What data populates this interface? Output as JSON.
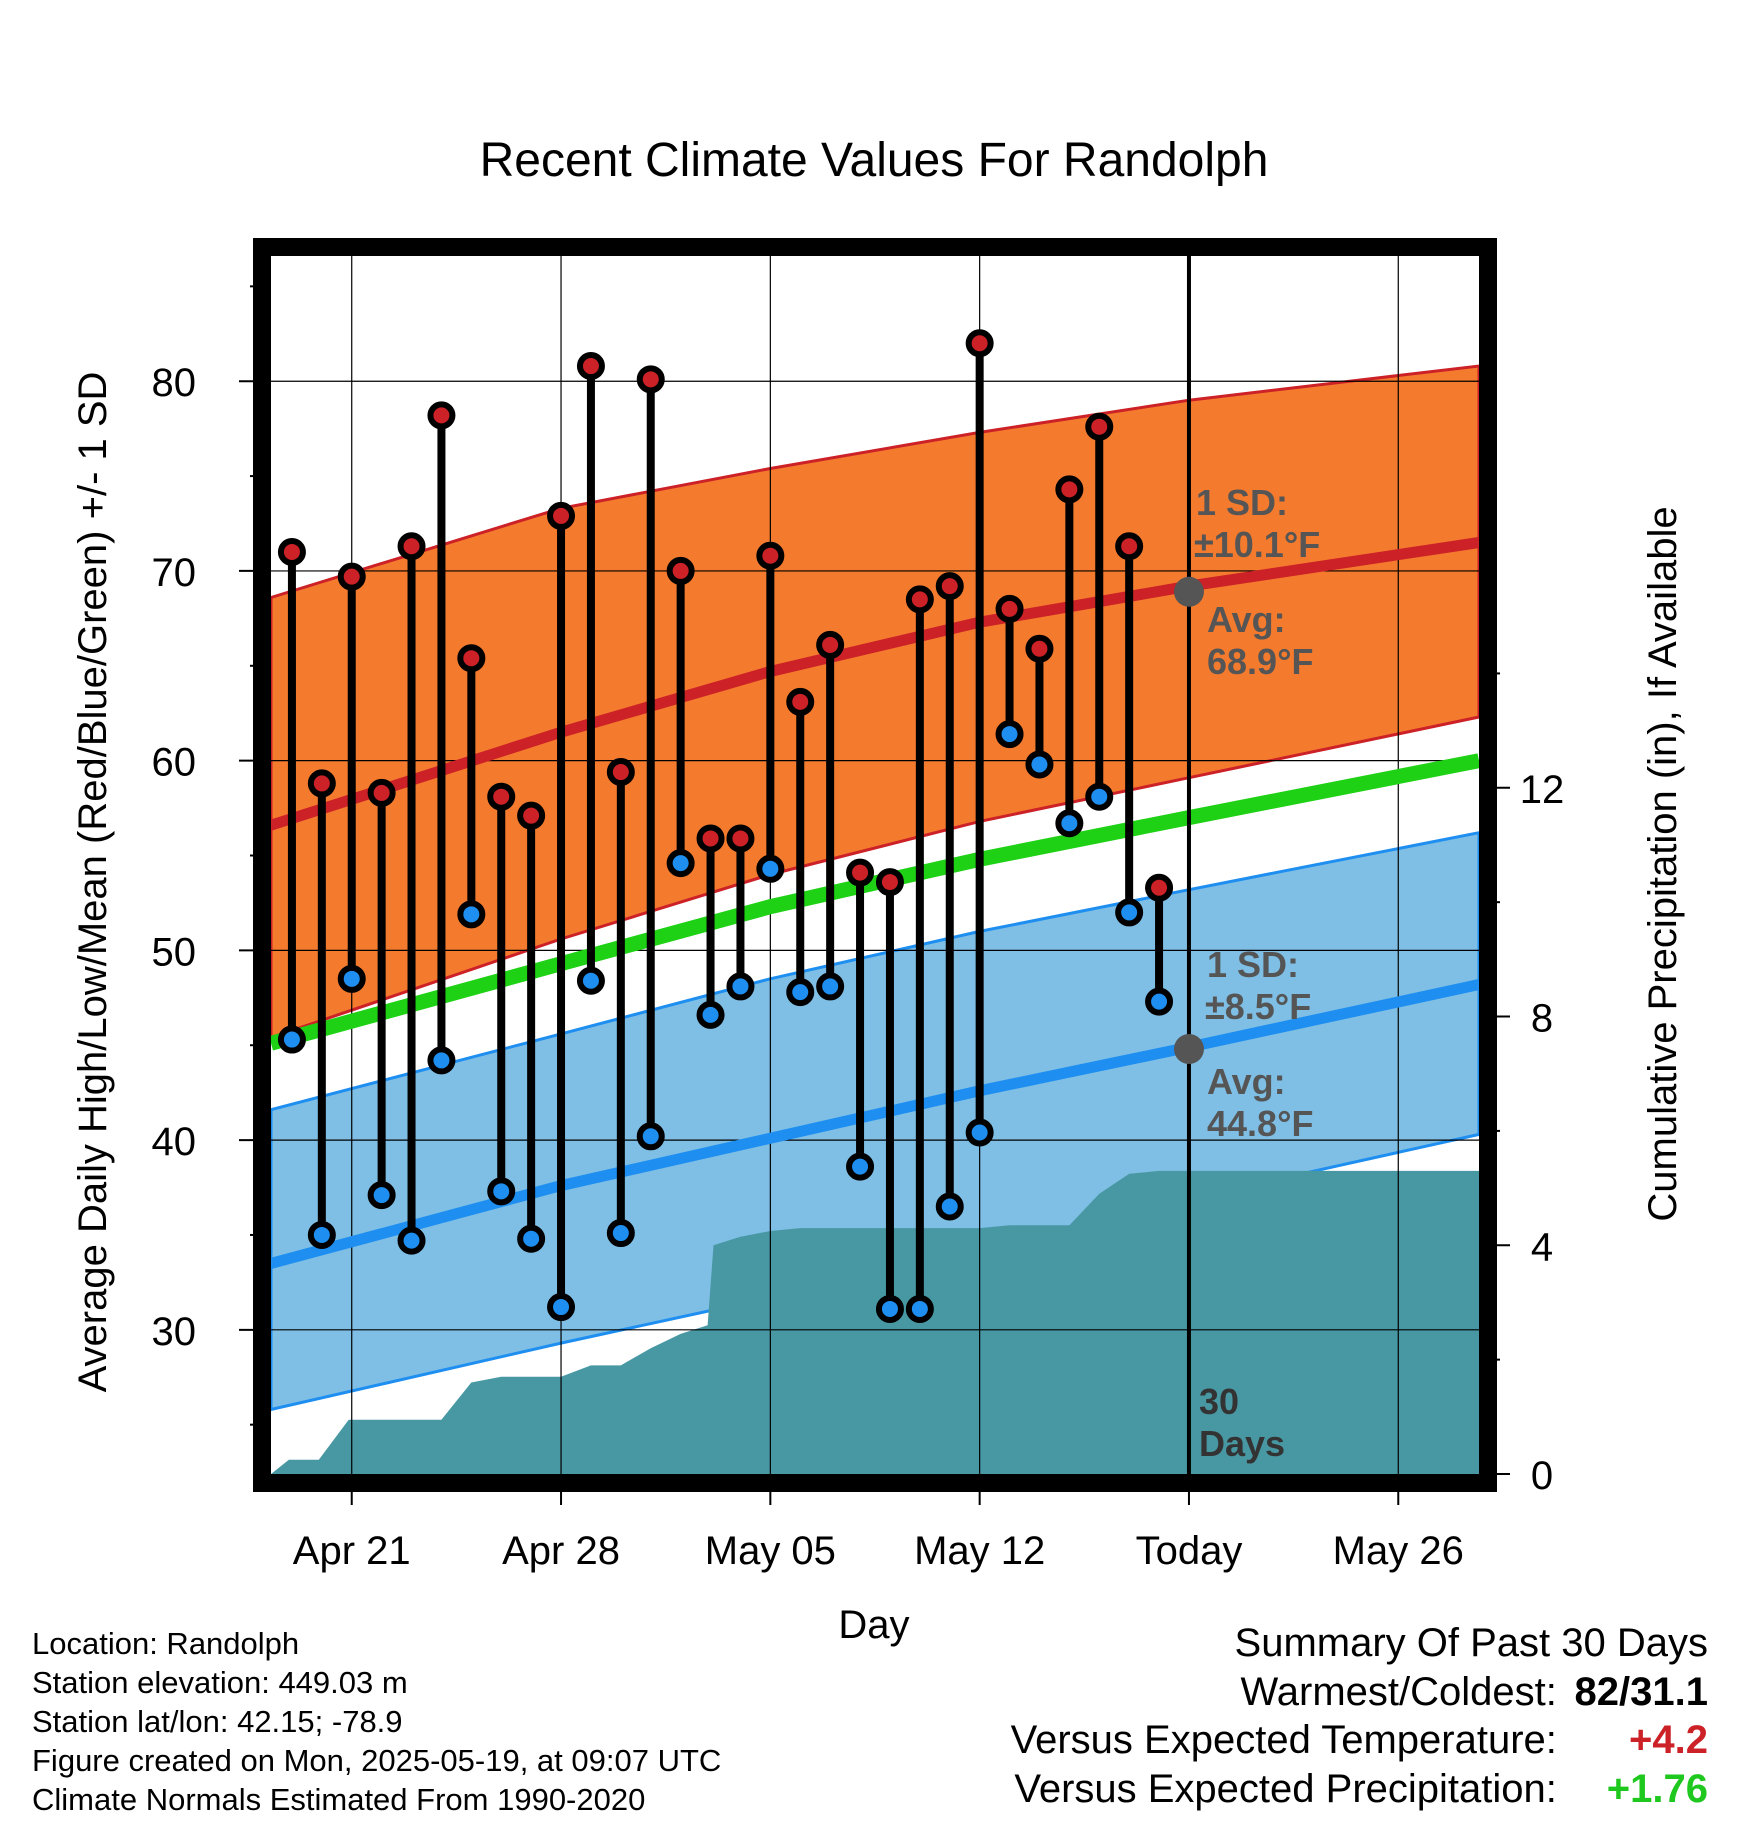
{
  "chart_data": {
    "type": "line",
    "title": "Recent Climate Values For Randolph",
    "xlabel": "Day",
    "ylabel": "Average Daily High/Low/Mean (Red/Blue/Green) +/- 1 SD",
    "y2label": "Cumulative Precipitation (in), If Available",
    "ylim": [
      22.4,
      86.6
    ],
    "y2lim": [
      0,
      21.3
    ],
    "xlim": [
      -2.7,
      37.7
    ],
    "yticks": [
      30,
      40,
      50,
      60,
      70,
      80
    ],
    "y2ticks": [
      0,
      4,
      8,
      12
    ],
    "x_tick_labels": [
      "Apr 21",
      "Apr 28",
      "May 05",
      "May 12",
      "Today",
      "May 26"
    ],
    "x_tick_days": [
      0,
      7,
      14,
      21,
      28,
      35
    ],
    "grid": true,
    "today_marker": {
      "day": 28,
      "label_line1": "30",
      "label_line2": "Days"
    },
    "normals": {
      "days": [
        -2.7,
        7,
        14,
        21,
        28,
        37.7
      ],
      "high_mean": [
        56.6,
        61.5,
        64.7,
        67.3,
        69.2,
        71.5
      ],
      "high_upper": [
        68.6,
        73.3,
        75.4,
        77.3,
        79.0,
        80.8
      ],
      "high_lower": [
        45.4,
        50.6,
        54.0,
        56.8,
        59.1,
        62.3
      ],
      "low_mean": [
        33.5,
        37.6,
        40.1,
        42.6,
        44.9,
        48.2
      ],
      "low_upper": [
        41.6,
        45.6,
        48.5,
        51.0,
        53.2,
        56.2
      ],
      "low_lower": [
        25.8,
        29.3,
        31.7,
        34.3,
        36.9,
        40.3
      ],
      "mean_line": [
        45.1,
        49.3,
        52.3,
        54.8,
        57.0,
        60.0
      ]
    },
    "daily": {
      "days": [
        -2,
        -1,
        0,
        1,
        2,
        3,
        4,
        5,
        6,
        7,
        8,
        9,
        10,
        11,
        12,
        13,
        14,
        15,
        16,
        17,
        18,
        19,
        20,
        21,
        22,
        23,
        24,
        25,
        26,
        27
      ],
      "high": [
        71.0,
        58.8,
        69.7,
        58.3,
        71.3,
        78.2,
        65.4,
        58.1,
        57.1,
        72.9,
        80.8,
        59.4,
        80.1,
        70.0,
        55.9,
        55.9,
        70.8,
        63.1,
        66.1,
        54.1,
        53.6,
        68.5,
        69.2,
        82.0,
        68.0,
        65.9,
        74.3,
        77.6,
        71.3,
        53.3
      ],
      "low": [
        45.3,
        35.0,
        48.5,
        37.1,
        34.7,
        44.2,
        51.9,
        37.3,
        34.8,
        31.2,
        48.4,
        35.1,
        40.2,
        54.6,
        46.6,
        48.1,
        54.3,
        47.8,
        48.1,
        38.6,
        31.1,
        31.1,
        36.5,
        40.4,
        61.4,
        59.8,
        56.7,
        58.1,
        52.0,
        47.3
      ]
    },
    "precip": {
      "days": [
        -2.7,
        -2.1,
        -1.1,
        -0.1,
        1,
        2,
        3,
        4,
        5,
        6,
        7,
        8,
        9,
        10,
        11,
        11.9,
        12.1,
        13,
        14,
        15,
        16,
        17,
        18,
        19,
        20,
        21,
        22,
        23,
        24,
        25,
        26,
        27,
        28,
        37.7
      ],
      "cum": [
        0.0,
        0.25,
        0.25,
        0.95,
        0.95,
        0.95,
        0.95,
        1.6,
        1.7,
        1.7,
        1.7,
        1.9,
        1.9,
        2.2,
        2.45,
        2.6,
        4.0,
        4.15,
        4.25,
        4.3,
        4.3,
        4.3,
        4.3,
        4.3,
        4.3,
        4.3,
        4.35,
        4.35,
        4.35,
        4.9,
        5.25,
        5.3,
        5.3,
        5.3
      ]
    },
    "annotations": {
      "high_sd": {
        "line1": "1 SD:",
        "line2": "±10.1°F"
      },
      "high_avg": {
        "line1": "Avg:",
        "line2": "68.9°F",
        "value": 68.9
      },
      "low_sd": {
        "line1": "1 SD:",
        "line2": "±8.5°F"
      },
      "low_avg": {
        "line1": "Avg:",
        "line2": "44.8°F",
        "value": 44.8
      }
    },
    "colors": {
      "high_band": "#f47b2e",
      "high_line": "#cc2127",
      "low_band": "#7fbfe5",
      "low_line": "#1e8ff0",
      "mean_line": "#1ed114",
      "precip": "#4898a4",
      "annotation_text": "#555555"
    }
  },
  "footer": {
    "location": "Location: Randolph",
    "elevation": "Station elevation: 449.03 m",
    "latlon": "Station lat/lon: 42.15; -78.9",
    "created": "Figure created on Mon, 2025-05-19, at 09:07 UTC",
    "normals": "Climate Normals Estimated From 1990-2020"
  },
  "summary": {
    "title": "Summary Of Past 30 Days",
    "warm_label": "Warmest/Coldest:",
    "warm_value": "82/31.1",
    "temp_label": "Versus Expected Temperature:",
    "temp_value": "+4.2",
    "temp_color": "#cc2127",
    "precip_label": "Versus Expected Precipitation:",
    "precip_value": "+1.76",
    "precip_color": "#1ec81e"
  }
}
